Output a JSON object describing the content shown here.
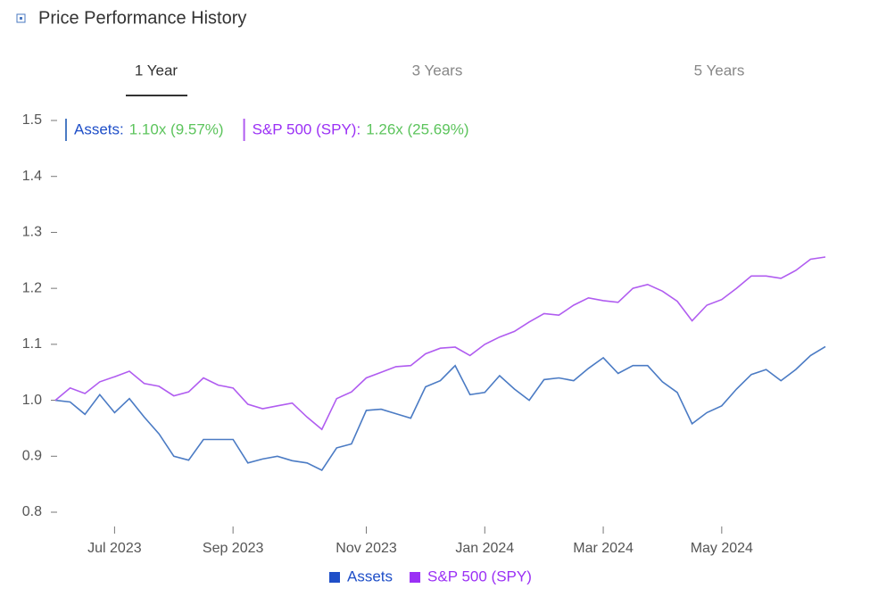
{
  "chart_data": {
    "type": "line",
    "title": "Price Performance History",
    "tabs": [
      "1 Year",
      "3 Years",
      "5 Years"
    ],
    "active_tab": 0,
    "header_legend": [
      {
        "label": "Assets:",
        "value": "1.10x (9.57%)"
      },
      {
        "label": "S&P 500 (SPY):",
        "value": "1.26x (25.69%)"
      }
    ],
    "categories": [
      null,
      null,
      null,
      null,
      "Jul 2023",
      null,
      null,
      null,
      null,
      null,
      null,
      null,
      "Sep 2023",
      null,
      null,
      null,
      null,
      null,
      null,
      null,
      null,
      "Nov 2023",
      null,
      null,
      null,
      null,
      null,
      null,
      null,
      "Jan 2024",
      null,
      null,
      null,
      null,
      null,
      null,
      null,
      "Mar 2024",
      null,
      null,
      null,
      null,
      null,
      null,
      null,
      "May 2024",
      null,
      null,
      null,
      null,
      null,
      null,
      null
    ],
    "series": [
      {
        "name": "Assets",
        "color": "#4b7bc4",
        "legend_color": "#1f4fc8",
        "values": [
          1.0,
          0.997,
          0.975,
          1.01,
          0.978,
          1.003,
          0.97,
          0.94,
          0.9,
          0.893,
          0.93,
          0.93,
          0.93,
          0.888,
          0.895,
          0.9,
          0.892,
          0.888,
          0.875,
          0.915,
          0.922,
          0.982,
          0.984,
          0.976,
          0.968,
          1.024,
          1.035,
          1.062,
          1.01,
          1.014,
          1.044,
          1.02,
          1.0,
          1.037,
          1.04,
          1.035,
          1.057,
          1.076,
          1.048,
          1.062,
          1.062,
          1.033,
          1.014,
          0.958,
          0.978,
          0.99,
          1.02,
          1.046,
          1.055,
          1.035,
          1.055,
          1.08,
          1.096
        ]
      },
      {
        "name": "S&P 500 (SPY)",
        "color": "#b05cf0",
        "legend_color": "#9b30f5",
        "values": [
          1.0,
          1.022,
          1.012,
          1.033,
          1.042,
          1.052,
          1.03,
          1.025,
          1.008,
          1.015,
          1.04,
          1.027,
          1.022,
          0.993,
          0.985,
          0.99,
          0.995,
          0.97,
          0.948,
          1.003,
          1.015,
          1.04,
          1.05,
          1.06,
          1.062,
          1.083,
          1.093,
          1.095,
          1.08,
          1.1,
          1.113,
          1.123,
          1.14,
          1.155,
          1.152,
          1.17,
          1.183,
          1.178,
          1.175,
          1.2,
          1.207,
          1.195,
          1.177,
          1.142,
          1.17,
          1.18,
          1.2,
          1.222,
          1.222,
          1.218,
          1.232,
          1.252,
          1.256
        ]
      }
    ],
    "ylim": [
      0.8,
      1.5
    ],
    "yticks": [
      0.8,
      0.9,
      {
        "value": 1,
        "label": "1.0"
      },
      1.1,
      1.2,
      1.3,
      1.4,
      1.5
    ],
    "grid": false,
    "value_color": "#5cc45c"
  }
}
